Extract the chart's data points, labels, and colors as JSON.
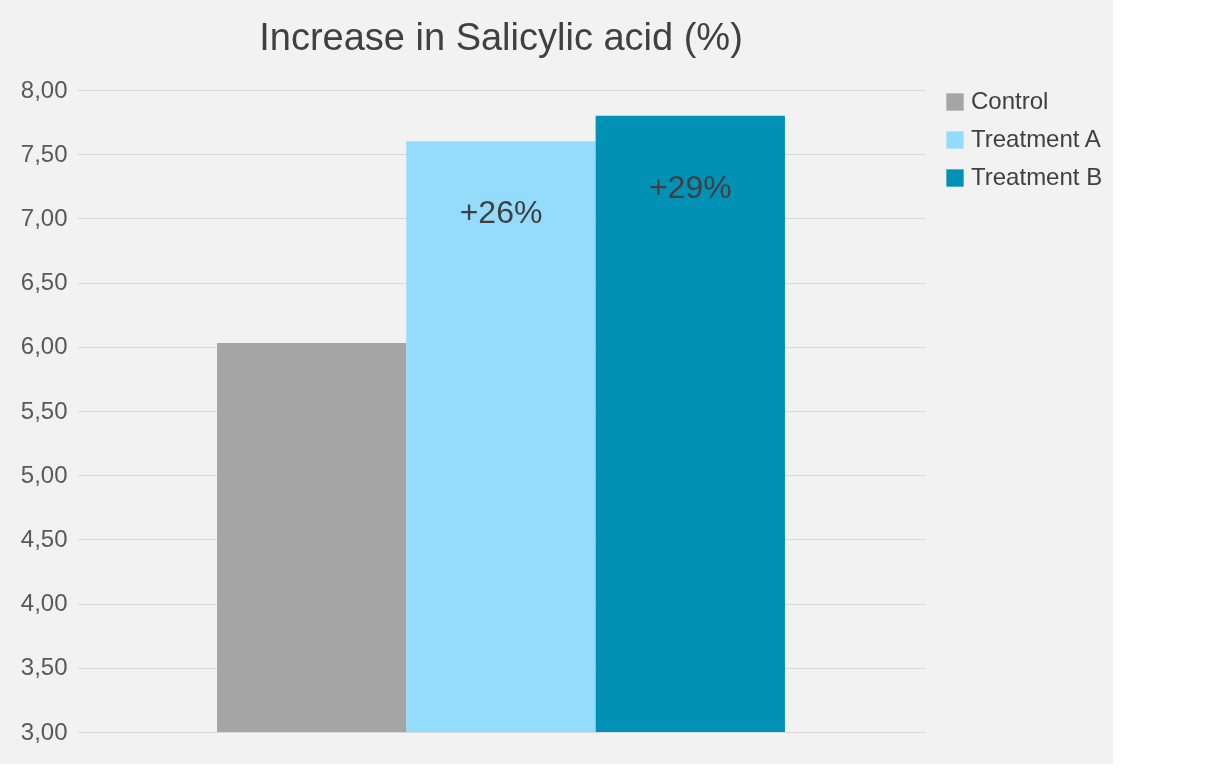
{
  "chart_data": {
    "type": "bar",
    "title": "Increase in Salicylic acid (%)",
    "categories": [
      null
    ],
    "series": [
      {
        "name": "Control",
        "color": "#a5a5a5",
        "values": [
          6.03
        ]
      },
      {
        "name": "Treatment A",
        "color": "#93dcfc",
        "values": [
          7.6
        ]
      },
      {
        "name": "Treatment B",
        "color": "#0091b5",
        "values": [
          7.8
        ]
      }
    ],
    "ylim": [
      3,
      8
    ],
    "yticks": [
      {
        "value": 3,
        "label": "3,00"
      },
      {
        "value": 3.5,
        "label": "3,50"
      },
      {
        "value": 4,
        "label": "4,00"
      },
      {
        "value": 4.5,
        "label": "4,50"
      },
      {
        "value": 5,
        "label": "5,00"
      },
      {
        "value": 5.5,
        "label": "5,50"
      },
      {
        "value": 6,
        "label": "6,00"
      },
      {
        "value": 6.5,
        "label": "6,50"
      },
      {
        "value": 7,
        "label": "7,00"
      },
      {
        "value": 7.5,
        "label": "7,50"
      },
      {
        "value": 8,
        "label": "8,00"
      }
    ],
    "annotations": [
      "+26%",
      "+29%"
    ],
    "grid": "y",
    "legend": "right"
  }
}
